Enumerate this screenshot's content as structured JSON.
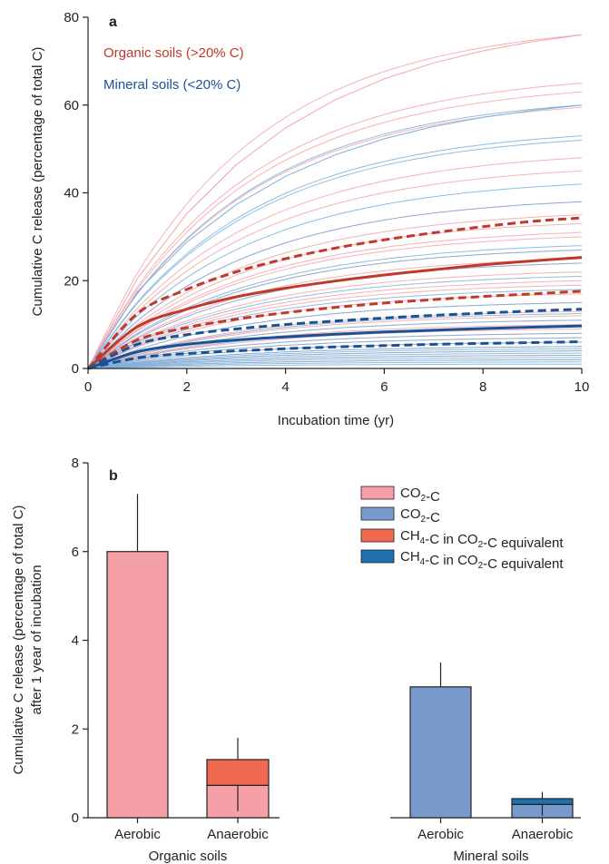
{
  "colors": {
    "organic_dark": "#c0392b",
    "organic_light": "#f4a3a8",
    "mineral_dark": "#1a5296",
    "mineral_light": "#7ab0dd",
    "bar_organic_co2": "#f4a0a6",
    "bar_mineral_co2": "#7799cc",
    "bar_organic_ch4": "#ef6a50",
    "bar_mineral_ch4": "#2070b0"
  },
  "chart_data": [
    {
      "panel": "a",
      "type": "line",
      "xlabel": "Incubation time (yr)",
      "ylabel": "Cumulative C release (percentage of total C)",
      "xlim": [
        0,
        10
      ],
      "ylim": [
        0,
        80
      ],
      "xticks": [
        0,
        2,
        4,
        6,
        8,
        10
      ],
      "yticks": [
        0,
        20,
        40,
        60,
        80
      ],
      "legend": [
        {
          "label": "Organic soils (>20% C)",
          "color": "#c0392b"
        },
        {
          "label": "Mineral soils (<20% C)",
          "color": "#1a5296"
        }
      ],
      "x": [
        0,
        1,
        2,
        3,
        4,
        5,
        6,
        7,
        8,
        9,
        10
      ],
      "series": [
        {
          "group": "organic",
          "role": "mean",
          "values": [
            0,
            9.5,
            13.5,
            16.3,
            18.3,
            19.9,
            21.3,
            22.5,
            23.6,
            24.5,
            25.3
          ]
        },
        {
          "group": "organic",
          "role": "upper-ci",
          "values": [
            0,
            12.5,
            18.0,
            22.0,
            25.0,
            27.4,
            29.3,
            30.9,
            32.3,
            33.5,
            34.3
          ]
        },
        {
          "group": "organic",
          "role": "lower-ci",
          "values": [
            0,
            6.5,
            9.3,
            11.2,
            12.7,
            13.9,
            14.9,
            15.7,
            16.4,
            17.0,
            17.6
          ]
        },
        {
          "group": "mineral",
          "role": "mean",
          "values": [
            0,
            3.8,
            5.5,
            6.5,
            7.2,
            7.8,
            8.3,
            8.7,
            9.1,
            9.4,
            9.7
          ]
        },
        {
          "group": "mineral",
          "role": "upper-ci",
          "values": [
            0,
            5.5,
            7.7,
            9.0,
            10.0,
            10.8,
            11.5,
            12.1,
            12.6,
            13.1,
            13.5
          ]
        },
        {
          "group": "mineral",
          "role": "lower-ci",
          "values": [
            0,
            2.4,
            3.4,
            4.0,
            4.5,
            4.9,
            5.2,
            5.5,
            5.7,
            5.9,
            6.1
          ]
        }
      ],
      "individual_organic_finals": [
        76,
        65,
        63,
        59.5,
        48,
        45,
        38,
        35,
        33,
        31,
        30,
        27,
        25,
        24,
        22,
        20,
        19,
        17,
        15,
        13,
        12,
        11,
        10,
        9,
        8,
        7,
        6,
        5,
        4,
        3,
        2
      ],
      "individual_mineral_finals": [
        60,
        53,
        52,
        42,
        38,
        28,
        27,
        24,
        21,
        18,
        15,
        12.5,
        11,
        9.5,
        8,
        7,
        6,
        5,
        4.5,
        4,
        3.5,
        3,
        2.5,
        2,
        1.5,
        1
      ],
      "fast_curves": [
        {
          "group": "organic",
          "y1": 20.5
        },
        {
          "group": "mineral",
          "y1": 17.5
        }
      ]
    },
    {
      "panel": "b",
      "type": "bar",
      "ylabel_lines": [
        "Cumulative C release (percentage of total C)",
        "after 1 year of incubation"
      ],
      "ylim": [
        0,
        8
      ],
      "yticks": [
        0,
        2,
        4,
        6,
        8
      ],
      "groups": [
        {
          "name": "Organic soils",
          "bars": [
            {
              "label": "Aerobic",
              "co2": 6.0,
              "ch4": 0,
              "err_top": 7.3,
              "kind": "organic"
            },
            {
              "label": "Anaerobic",
              "co2": 0.73,
              "ch4": 0.58,
              "err_top": 1.8,
              "err_bottom": 0.15,
              "kind": "organic"
            }
          ]
        },
        {
          "name": "Mineral soils",
          "bars": [
            {
              "label": "Aerobic",
              "co2": 2.95,
              "ch4": 0,
              "err_top": 3.5,
              "kind": "mineral"
            },
            {
              "label": "Anaerobic",
              "co2": 0.3,
              "ch4": 0.13,
              "err_top": 0.58,
              "err_bottom": 0.05,
              "kind": "mineral"
            }
          ]
        }
      ],
      "legend": [
        {
          "label": "CO2-C",
          "prefix": "CO",
          "sub": "2",
          "suffix": "-C",
          "color": "#f4a0a6"
        },
        {
          "label": "CO2-C",
          "prefix": "CO",
          "sub": "2",
          "suffix": "-C",
          "color": "#7799cc"
        },
        {
          "label": "CH4-C in CO2-C equivalent",
          "prefix": "CH",
          "sub": "4",
          "suffix": "-C in CO",
          "sub2": "2",
          "suffix2": "-C equivalent",
          "color": "#ef6a50"
        },
        {
          "label": "CH4-C in CO2-C equivalent",
          "prefix": "CH",
          "sub": "4",
          "suffix": "-C in CO",
          "sub2": "2",
          "suffix2": "-C equivalent",
          "color": "#2070b0"
        }
      ]
    }
  ],
  "panel_letters": [
    "a",
    "b"
  ]
}
